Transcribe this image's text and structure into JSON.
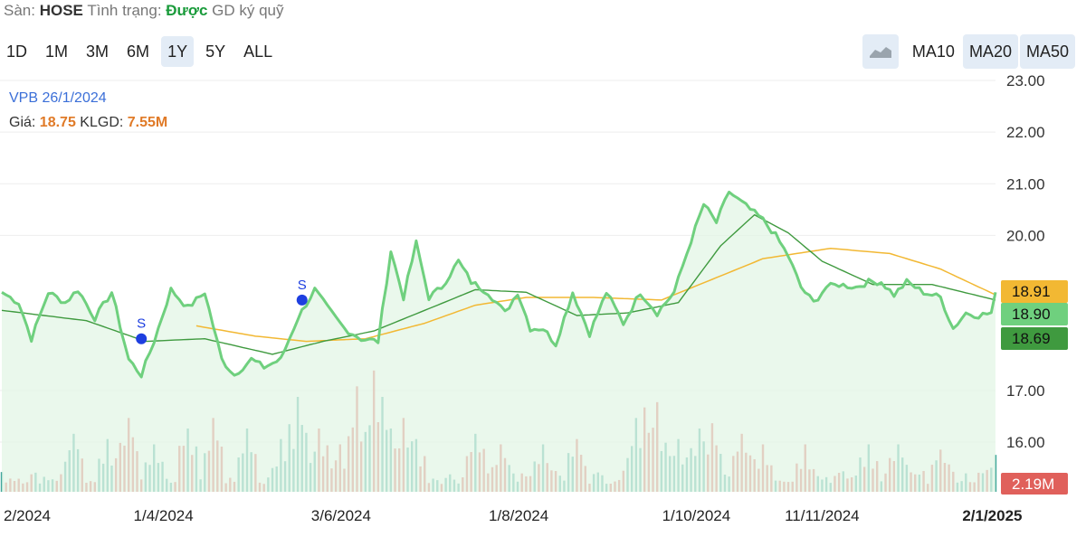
{
  "header": {
    "exchange_label": "Sàn:",
    "exchange": "HOSE",
    "status_label": "Tình trạng:",
    "status": "Được",
    "margin_text": "GD ký quỹ"
  },
  "ranges": [
    {
      "label": "1D",
      "active": false
    },
    {
      "label": "1M",
      "active": false
    },
    {
      "label": "3M",
      "active": false
    },
    {
      "label": "6M",
      "active": false
    },
    {
      "label": "1Y",
      "active": true
    },
    {
      "label": "5Y",
      "active": false
    },
    {
      "label": "ALL",
      "active": false
    }
  ],
  "indicators": [
    {
      "label": "MA10",
      "active": false
    },
    {
      "label": "MA20",
      "active": true
    },
    {
      "label": "MA50",
      "active": true
    }
  ],
  "area_toggle_icon": "area-chart-icon",
  "legend": {
    "ticker_date": "VPB 26/1/2024",
    "price_label": "Giá:",
    "price": "18.75",
    "volume_label": "KLGD:",
    "volume": "7.55M"
  },
  "colors": {
    "price_line": "#6fd07e",
    "price_fill": "#e3f6e6",
    "ma20": "#3f9a3f",
    "ma50": "#f2b833",
    "vol_up": "#41a79b",
    "vol_down": "#e0605b",
    "marker": "#1e3fe0"
  },
  "chart_data": {
    "type": "line",
    "y_axis": {
      "ylim": [
        15.0,
        23.2
      ],
      "ticks": [
        "23.00",
        "22.00",
        "21.00",
        "20.00",
        "17.00",
        "16.00"
      ],
      "tick_values": [
        23,
        22,
        21,
        20,
        17,
        16
      ]
    },
    "x_axis": {
      "labels": [
        {
          "label": "2/2024",
          "index": 0
        },
        {
          "label": "1/4/2024",
          "index": 38
        },
        {
          "label": "3/6/2024",
          "index": 80
        },
        {
          "label": "1/8/2024",
          "index": 122
        },
        {
          "label": "1/10/2024",
          "index": 163
        },
        {
          "label": "11/11/2024",
          "index": 192
        },
        {
          "label": "2/1/2025",
          "index": 234,
          "bold": true
        }
      ]
    },
    "price_anchors": [
      [
        0,
        18.9
      ],
      [
        4,
        18.7
      ],
      [
        7,
        18.0
      ],
      [
        11,
        18.9
      ],
      [
        15,
        18.7
      ],
      [
        18,
        18.95
      ],
      [
        22,
        18.4
      ],
      [
        26,
        18.9
      ],
      [
        30,
        17.6
      ],
      [
        33,
        17.3
      ],
      [
        36,
        17.95
      ],
      [
        40,
        18.95
      ],
      [
        44,
        18.6
      ],
      [
        48,
        18.9
      ],
      [
        52,
        17.6
      ],
      [
        55,
        17.3
      ],
      [
        59,
        17.6
      ],
      [
        62,
        17.45
      ],
      [
        66,
        17.6
      ],
      [
        70,
        18.4
      ],
      [
        74,
        18.95
      ],
      [
        77,
        18.6
      ],
      [
        81,
        18.2
      ],
      [
        85,
        18.0
      ],
      [
        89,
        17.95
      ],
      [
        92,
        19.7
      ],
      [
        95,
        18.8
      ],
      [
        98,
        19.85
      ],
      [
        101,
        18.8
      ],
      [
        104,
        19.0
      ],
      [
        108,
        19.5
      ],
      [
        111,
        19.1
      ],
      [
        115,
        18.9
      ],
      [
        119,
        18.5
      ],
      [
        122,
        18.9
      ],
      [
        125,
        18.2
      ],
      [
        128,
        18.2
      ],
      [
        131,
        17.9
      ],
      [
        135,
        18.9
      ],
      [
        139,
        18.1
      ],
      [
        143,
        18.9
      ],
      [
        147,
        18.3
      ],
      [
        151,
        18.9
      ],
      [
        155,
        18.5
      ],
      [
        159,
        18.9
      ],
      [
        163,
        19.9
      ],
      [
        166,
        20.6
      ],
      [
        169,
        20.25
      ],
      [
        172,
        20.85
      ],
      [
        174,
        20.7
      ],
      [
        177,
        20.5
      ],
      [
        180,
        20.3
      ],
      [
        183,
        20.0
      ],
      [
        186,
        19.6
      ],
      [
        189,
        19.0
      ],
      [
        192,
        18.7
      ],
      [
        195,
        19.0
      ],
      [
        198,
        19.05
      ],
      [
        202,
        19.0
      ],
      [
        205,
        19.1
      ],
      [
        208,
        19.1
      ],
      [
        211,
        18.85
      ],
      [
        214,
        19.1
      ],
      [
        218,
        18.9
      ],
      [
        222,
        18.8
      ],
      [
        225,
        18.2
      ],
      [
        228,
        18.5
      ],
      [
        231,
        18.45
      ],
      [
        234,
        18.5
      ],
      [
        235,
        18.9
      ]
    ],
    "ma20_anchors": [
      [
        0,
        18.55
      ],
      [
        20,
        18.35
      ],
      [
        34,
        17.95
      ],
      [
        48,
        18.0
      ],
      [
        64,
        17.7
      ],
      [
        76,
        17.95
      ],
      [
        88,
        18.15
      ],
      [
        100,
        18.55
      ],
      [
        112,
        18.95
      ],
      [
        124,
        18.9
      ],
      [
        136,
        18.45
      ],
      [
        148,
        18.5
      ],
      [
        160,
        18.7
      ],
      [
        170,
        19.8
      ],
      [
        178,
        20.4
      ],
      [
        186,
        20.05
      ],
      [
        194,
        19.5
      ],
      [
        206,
        19.05
      ],
      [
        220,
        19.05
      ],
      [
        235,
        18.75
      ]
    ],
    "ma50_anchors": [
      [
        46,
        18.25
      ],
      [
        60,
        18.05
      ],
      [
        72,
        17.95
      ],
      [
        86,
        18.0
      ],
      [
        100,
        18.3
      ],
      [
        112,
        18.65
      ],
      [
        124,
        18.8
      ],
      [
        140,
        18.8
      ],
      [
        156,
        18.75
      ],
      [
        168,
        19.15
      ],
      [
        180,
        19.55
      ],
      [
        196,
        19.75
      ],
      [
        210,
        19.65
      ],
      [
        222,
        19.35
      ],
      [
        235,
        18.85
      ]
    ],
    "volume": {
      "max_m": 24,
      "peaks": [
        [
          17,
          11
        ],
        [
          25,
          10
        ],
        [
          30,
          14
        ],
        [
          36,
          9
        ],
        [
          44,
          12
        ],
        [
          50,
          14
        ],
        [
          58,
          12
        ],
        [
          66,
          10
        ],
        [
          70,
          18
        ],
        [
          75,
          12
        ],
        [
          80,
          9
        ],
        [
          84,
          20
        ],
        [
          88,
          23
        ],
        [
          90,
          18
        ],
        [
          92,
          12
        ],
        [
          95,
          14
        ],
        [
          98,
          10
        ],
        [
          112,
          11
        ],
        [
          118,
          9
        ],
        [
          128,
          9
        ],
        [
          136,
          10
        ],
        [
          150,
          14
        ],
        [
          152,
          16
        ],
        [
          155,
          17
        ],
        [
          160,
          10
        ],
        [
          165,
          12
        ],
        [
          168,
          13
        ],
        [
          175,
          11
        ],
        [
          180,
          9
        ],
        [
          190,
          9
        ],
        [
          205,
          9
        ],
        [
          212,
          9
        ],
        [
          222,
          8
        ],
        [
          235,
          7
        ]
      ]
    },
    "signals": [
      {
        "label": "S",
        "index": 33,
        "value": 18.0
      },
      {
        "label": "S",
        "index": 71,
        "value": 18.75
      }
    ],
    "price_badges": [
      {
        "series": "MA50",
        "value": "18.91"
      },
      {
        "series": "Price",
        "value": "18.90"
      },
      {
        "series": "MA20",
        "value": "18.69"
      }
    ],
    "volume_badge": "2.19M"
  }
}
